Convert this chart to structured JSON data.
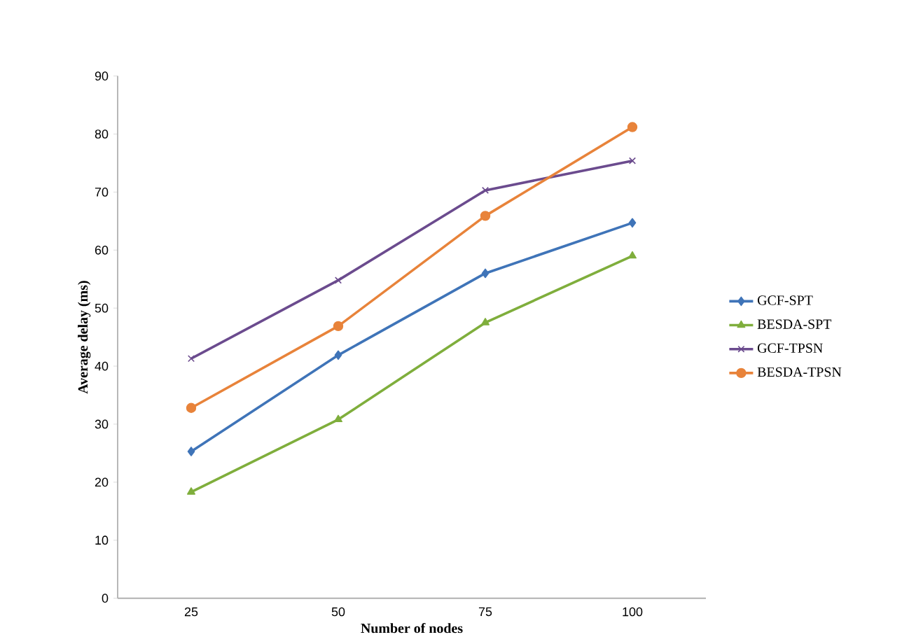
{
  "chart_data": {
    "type": "line",
    "xlabel": "Number of nodes",
    "ylabel": "Average delay (ms)",
    "categories": [
      "25",
      "50",
      "75",
      "100"
    ],
    "ylim": [
      0,
      90
    ],
    "yticks": [
      0,
      10,
      20,
      30,
      40,
      50,
      60,
      70,
      80,
      90
    ],
    "legend": "right",
    "grid": false,
    "line_style": "solid",
    "series": [
      {
        "name": "GCF-SPT",
        "color": "#3f74b8",
        "marker": "diamond",
        "values": [
          25.3,
          41.9,
          56.0,
          64.7
        ]
      },
      {
        "name": "BESDA-SPT",
        "color": "#7fae3c",
        "marker": "triangle",
        "values": [
          18.3,
          30.8,
          47.5,
          59.0
        ]
      },
      {
        "name": "GCF-TPSN",
        "color": "#6b4b8e",
        "marker": "cross",
        "values": [
          41.3,
          54.8,
          70.3,
          75.4
        ]
      },
      {
        "name": "BESDA-TPSN",
        "color": "#e8833a",
        "marker": "circle",
        "values": [
          32.8,
          46.9,
          65.9,
          81.2
        ]
      }
    ]
  }
}
